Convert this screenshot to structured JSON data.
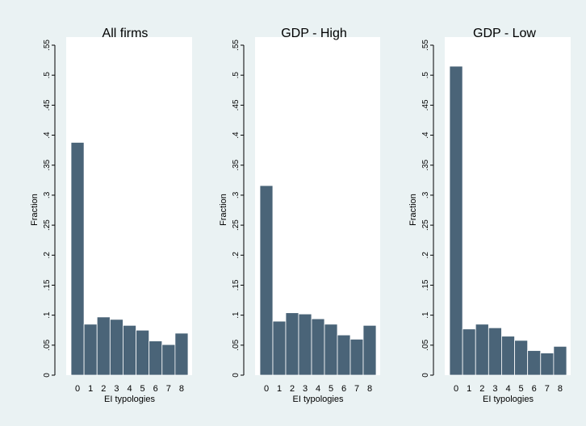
{
  "chart_data": [
    {
      "type": "bar",
      "title": "All firms",
      "xlabel": "EI typologies",
      "ylabel": "Fraction",
      "categories": [
        "0",
        "1",
        "2",
        "3",
        "4",
        "5",
        "6",
        "7",
        "8"
      ],
      "values": [
        0.388,
        0.085,
        0.097,
        0.093,
        0.083,
        0.075,
        0.057,
        0.051,
        0.07
      ],
      "ylim": [
        0,
        0.55
      ],
      "yticks": [
        "0",
        ".05",
        ".1",
        ".15",
        ".2",
        ".25",
        ".3",
        ".35",
        ".4",
        ".45",
        ".5",
        ".55"
      ],
      "grid": false
    },
    {
      "type": "bar",
      "title": "GDP - High",
      "xlabel": "EI typologies",
      "ylabel": "Fraction",
      "categories": [
        "0",
        "1",
        "2",
        "3",
        "4",
        "5",
        "6",
        "7",
        "8"
      ],
      "values": [
        0.316,
        0.09,
        0.104,
        0.102,
        0.094,
        0.085,
        0.067,
        0.06,
        0.083
      ],
      "ylim": [
        0,
        0.55
      ],
      "yticks": [
        "0",
        ".05",
        ".1",
        ".15",
        ".2",
        ".25",
        ".3",
        ".35",
        ".4",
        ".45",
        ".5",
        ".55"
      ],
      "grid": false
    },
    {
      "type": "bar",
      "title": "GDP - Low",
      "xlabel": "EI typologies",
      "ylabel": "Fraction",
      "categories": [
        "0",
        "1",
        "2",
        "3",
        "4",
        "5",
        "6",
        "7",
        "8"
      ],
      "values": [
        0.515,
        0.077,
        0.085,
        0.079,
        0.065,
        0.058,
        0.041,
        0.037,
        0.048
      ],
      "ylim": [
        0,
        0.55
      ],
      "yticks": [
        "0",
        ".05",
        ".1",
        ".15",
        ".2",
        ".25",
        ".3",
        ".35",
        ".4",
        ".45",
        ".5",
        ".55"
      ],
      "grid": false
    }
  ],
  "colors": {
    "background": "#eaf2f3",
    "plot_region": "#ffffff",
    "bar_fill": "#4a6478",
    "bar_edge": "#ffffff",
    "axis": "#000000"
  }
}
